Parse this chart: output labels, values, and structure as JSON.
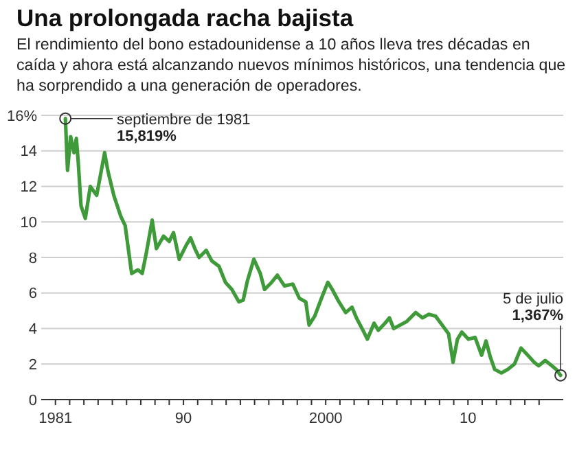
{
  "chart_data": {
    "type": "line",
    "title": "Una prolongada racha bajista",
    "subtitle": "El rendimiento del bono estadounidense a 10 años lleva tres décadas en caída y ahora está alcanzando nuevos mínimos históricos, una tendencia que ha sorprendido a una generación de operadores.",
    "annotations": [
      {
        "text": "septiembre de 1981\n15,819%",
        "x": 1981.7,
        "y": 15.819
      },
      {
        "text": "5 de julio\n1,367%",
        "x": 2016.51,
        "y": 1.367
      }
    ],
    "series": [
      {
        "color": "#3f9a3a",
        "x": [
          1981.7,
          1981.85,
          1982.07,
          1982.3,
          1982.47,
          1982.6,
          1982.8,
          1983.1,
          1983.45,
          1983.9,
          1984.46,
          1984.68,
          1985.1,
          1985.6,
          1985.9,
          1986.36,
          1986.8,
          1987.1,
          1987.4,
          1987.8,
          1988.1,
          1988.6,
          1989.0,
          1989.3,
          1989.7,
          1990.2,
          1990.5,
          1990.8,
          1991.1,
          1991.6,
          1992.0,
          1992.5,
          1992.95,
          1993.4,
          1993.9,
          1994.2,
          1994.5,
          1994.95,
          1995.4,
          1995.7,
          1996.2,
          1996.6,
          1997.1,
          1997.69,
          1998.15,
          1998.6,
          1998.83,
          1999.23,
          1999.7,
          2000.15,
          2000.46,
          2000.93,
          2001.4,
          2001.85,
          2002.16,
          2002.62,
          2002.93,
          2003.4,
          2003.7,
          2004.17,
          2004.48,
          2004.78,
          2005.25,
          2005.7,
          2006.33,
          2006.8,
          2007.25,
          2007.72,
          2008.18,
          2008.64,
          2008.95,
          2009.26,
          2009.57,
          2010.03,
          2010.5,
          2010.96,
          2011.27,
          2011.57,
          2011.88,
          2012.35,
          2012.8,
          2013.27,
          2013.73,
          2014.2,
          2014.66,
          2014.97,
          2015.43,
          2015.9,
          2016.2,
          2016.51
        ],
        "values": [
          15.819,
          12.9,
          14.8,
          13.9,
          14.7,
          13.4,
          10.9,
          10.2,
          12.0,
          11.5,
          13.9,
          12.9,
          11.5,
          10.3,
          9.8,
          7.1,
          7.3,
          7.1,
          8.3,
          10.1,
          8.5,
          9.2,
          8.9,
          9.4,
          7.9,
          8.7,
          9.1,
          8.5,
          8.0,
          8.4,
          7.8,
          7.5,
          6.6,
          6.2,
          5.5,
          5.6,
          6.7,
          7.9,
          7.1,
          6.2,
          6.6,
          7.0,
          6.4,
          6.5,
          5.7,
          5.5,
          4.2,
          4.7,
          5.7,
          6.6,
          6.2,
          5.5,
          4.9,
          5.2,
          4.6,
          3.9,
          3.4,
          4.3,
          3.9,
          4.3,
          4.6,
          4.0,
          4.2,
          4.4,
          4.9,
          4.6,
          4.8,
          4.7,
          4.2,
          3.7,
          2.1,
          3.4,
          3.8,
          3.4,
          3.5,
          2.5,
          3.3,
          2.4,
          1.7,
          1.5,
          1.7,
          2.0,
          2.9,
          2.5,
          2.1,
          1.9,
          2.2,
          1.9,
          1.7,
          1.367
        ]
      }
    ],
    "xlim": [
      1980,
      2016.7
    ],
    "xticks": [
      {
        "value": 1981,
        "label": "1981"
      },
      {
        "value": 1982,
        "label": null
      },
      {
        "value": 1983,
        "label": null
      },
      {
        "value": 1984,
        "label": null
      },
      {
        "value": 1985,
        "label": null
      },
      {
        "value": 1986,
        "label": null
      },
      {
        "value": 1987,
        "label": null
      },
      {
        "value": 1988,
        "label": null
      },
      {
        "value": 1989,
        "label": null
      },
      {
        "value": 1990,
        "label": "90"
      },
      {
        "value": 1991,
        "label": null
      },
      {
        "value": 1992,
        "label": null
      },
      {
        "value": 1993,
        "label": null
      },
      {
        "value": 1994,
        "label": null
      },
      {
        "value": 1995,
        "label": null
      },
      {
        "value": 1996,
        "label": null
      },
      {
        "value": 1997,
        "label": null
      },
      {
        "value": 1998,
        "label": null
      },
      {
        "value": 1999,
        "label": null
      },
      {
        "value": 2000,
        "label": "2000"
      },
      {
        "value": 2001,
        "label": null
      },
      {
        "value": 2002,
        "label": null
      },
      {
        "value": 2003,
        "label": null
      },
      {
        "value": 2004,
        "label": null
      },
      {
        "value": 2005,
        "label": null
      },
      {
        "value": 2006,
        "label": null
      },
      {
        "value": 2007,
        "label": null
      },
      {
        "value": 2008,
        "label": null
      },
      {
        "value": 2009,
        "label": null
      },
      {
        "value": 2010,
        "label": "10"
      },
      {
        "value": 2011,
        "label": null
      },
      {
        "value": 2012,
        "label": null
      },
      {
        "value": 2013,
        "label": null
      },
      {
        "value": 2014,
        "label": null
      },
      {
        "value": 2015,
        "label": null
      }
    ],
    "ylim": [
      0,
      16
    ],
    "yticks": [
      0,
      2,
      4,
      6,
      8,
      10,
      12,
      14,
      {
        "value": 16,
        "label": "16%"
      }
    ],
    "grid": "y",
    "line_style": "solid",
    "marker": "none"
  }
}
